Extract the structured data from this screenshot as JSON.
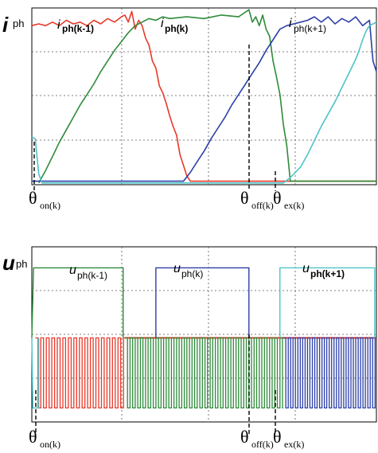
{
  "chart_data": [
    {
      "type": "line",
      "ylabel_main": "i",
      "ylabel_sub": "ph",
      "xlim": [
        0,
        100
      ],
      "ylim": [
        0,
        100
      ],
      "grid": true,
      "series": [
        {
          "name_main": "i",
          "name_sub": "ph(k-1)",
          "color": "#e8392a",
          "x": [
            0,
            2,
            4,
            6,
            8,
            10,
            12,
            14,
            16,
            18,
            20,
            22,
            24,
            26,
            27,
            28,
            29,
            30,
            31,
            32,
            33,
            34,
            35,
            36,
            37,
            38,
            39,
            40,
            41,
            42,
            43,
            44,
            45,
            46,
            50,
            60,
            70,
            80,
            90,
            100
          ],
          "y": [
            90,
            91,
            90,
            92,
            90,
            93,
            91,
            92,
            90,
            93,
            91,
            94,
            92,
            95,
            96,
            92,
            98,
            88,
            93,
            90,
            83,
            79,
            70,
            66,
            56,
            52,
            46,
            39,
            33,
            28,
            17,
            11,
            5,
            2,
            2,
            2,
            2,
            2,
            2,
            2
          ]
        },
        {
          "name_main": "i",
          "name_sub": "ph(k)",
          "color": "#2e8b3a",
          "x": [
            2,
            4,
            6,
            8,
            10,
            12,
            14,
            16,
            18,
            20,
            22,
            24,
            26,
            28,
            30,
            32,
            34,
            36,
            38,
            40,
            45,
            50,
            55,
            60,
            63,
            64,
            65,
            66,
            67,
            68,
            69,
            70,
            71,
            72,
            73,
            74,
            75,
            80,
            90,
            100
          ],
          "y": [
            1,
            8,
            16,
            24,
            31,
            38,
            45,
            51,
            57,
            64,
            70,
            76,
            81,
            86,
            90,
            92,
            94,
            93,
            95,
            94,
            95,
            94,
            96,
            95,
            99,
            92,
            95,
            90,
            96,
            88,
            84,
            70,
            61,
            51,
            34,
            22,
            2,
            2,
            2,
            2
          ]
        },
        {
          "name_main": "i",
          "name_sub": "ph(k+1)",
          "color": "#2c3fa8",
          "x": [
            0,
            44,
            46,
            48,
            50,
            52,
            54,
            56,
            58,
            60,
            62,
            64,
            66,
            68,
            70,
            72,
            74,
            76,
            78,
            80,
            82,
            84,
            86,
            88,
            90,
            92,
            94,
            96,
            98,
            99,
            100
          ],
          "y": [
            2,
            2,
            7,
            13,
            19,
            26,
            32,
            38,
            45,
            51,
            57,
            63,
            69,
            76,
            82,
            88,
            90,
            91,
            92,
            93,
            95,
            92,
            95,
            91,
            94,
            92,
            95,
            90,
            93,
            70,
            64
          ]
        },
        {
          "name_main": "",
          "name_sub": "",
          "color": "#4fc3c8",
          "x": [
            0,
            1,
            2,
            3,
            5,
            10,
            20,
            30,
            40,
            50,
            60,
            70,
            73,
            75,
            78,
            80,
            82,
            84,
            86,
            88,
            90,
            92,
            94,
            95,
            96,
            97,
            98,
            99,
            100
          ],
          "y": [
            27,
            26,
            6,
            1,
            1,
            1,
            1,
            1,
            1,
            1,
            1,
            1,
            1,
            4,
            10,
            17,
            25,
            33,
            40,
            47,
            55,
            63,
            71,
            76,
            82,
            87,
            90,
            91,
            92
          ]
        }
      ],
      "annotations": [
        {
          "main": "θ",
          "sub": "on(k)"
        },
        {
          "main": "θ",
          "sub": "off(k)"
        },
        {
          "main": "θ",
          "sub": "ex(k)"
        }
      ]
    },
    {
      "type": "line",
      "ylabel_main": "u",
      "ylabel_sub": "ph",
      "xlim": [
        0,
        100
      ],
      "ylim": [
        -1.2,
        1.3
      ],
      "grid": true,
      "series": [
        {
          "name_main": "u",
          "name_sub": "ph(k-1)",
          "color": "#e8392a",
          "segments": [
            0,
            27
          ]
        },
        {
          "name_main": "u",
          "name_sub": "ph(k)",
          "color": "#2e8b3a",
          "segments": [
            27,
            73
          ]
        },
        {
          "name_main": "u",
          "name_sub": "ph(k+1)",
          "color": "#2c3fa8",
          "segments": [
            73,
            100
          ]
        },
        {
          "name_main": "",
          "name_sub": "",
          "color": "#4fc3c8",
          "segments": [
            0,
            2
          ]
        }
      ],
      "annotations": [
        {
          "main": "θ",
          "sub": "on(k)"
        },
        {
          "main": "θ",
          "sub": "off(k)"
        },
        {
          "main": "θ",
          "sub": "ex(k)"
        }
      ]
    }
  ]
}
